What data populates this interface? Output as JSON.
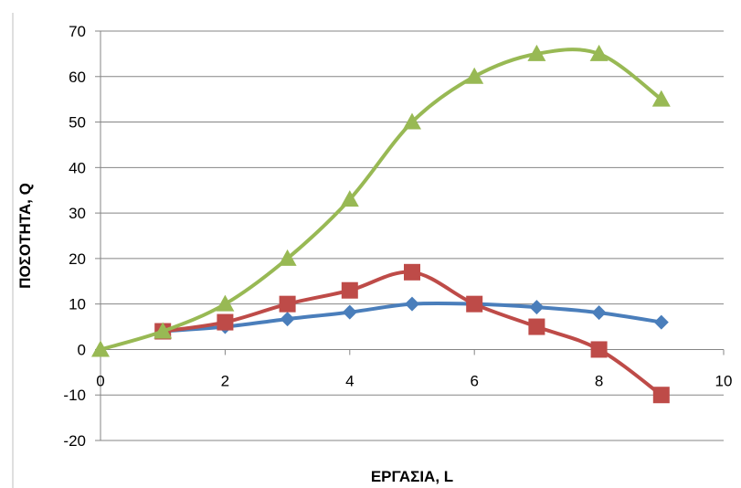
{
  "chart_data": {
    "type": "line",
    "title": "",
    "xlabel": "ΕΡΓΑΣΙΑ, L",
    "ylabel": "ΠΟΣΟΤΗΤΑ, Q",
    "xlim": [
      0,
      10
    ],
    "ylim": [
      -20,
      70
    ],
    "x_ticks": [
      0,
      2,
      4,
      6,
      8,
      10
    ],
    "y_ticks": [
      -20,
      -10,
      0,
      10,
      20,
      30,
      40,
      50,
      60,
      70
    ],
    "grid": "horizontal",
    "legend": "none",
    "smooth": true,
    "series": [
      {
        "color": "#4a7ebb",
        "marker": "diamond",
        "x": [
          1,
          2,
          3,
          4,
          5,
          6,
          7,
          8,
          9
        ],
        "y": [
          4,
          5,
          6.7,
          8.2,
          10,
          10,
          9.3,
          8.1,
          6
        ]
      },
      {
        "color": "#be4b48",
        "marker": "square",
        "x": [
          1,
          2,
          3,
          4,
          5,
          6,
          7,
          8,
          9
        ],
        "y": [
          4,
          6,
          10,
          13,
          17,
          10,
          5,
          0,
          -10
        ]
      },
      {
        "color": "#98b954",
        "marker": "triangle",
        "x": [
          0,
          1,
          2,
          3,
          4,
          5,
          6,
          7,
          8,
          9
        ],
        "y": [
          0,
          4,
          10,
          20,
          33,
          50,
          60,
          65,
          65,
          55
        ]
      }
    ]
  }
}
